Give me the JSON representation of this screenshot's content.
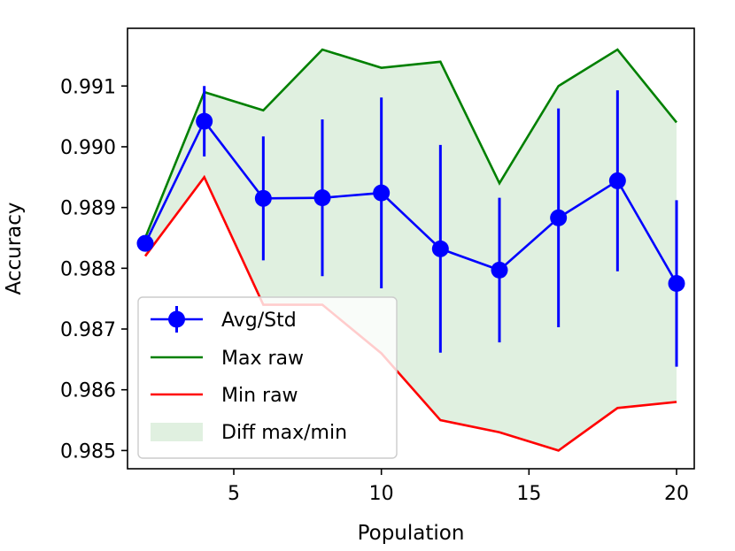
{
  "chart_data": {
    "type": "line",
    "title": "",
    "xlabel": "Population",
    "ylabel": "Accuracy",
    "xlim": [
      1.4,
      20.6
    ],
    "ylim": [
      0.9847,
      0.99195
    ],
    "xticks": [
      5,
      10,
      15,
      20
    ],
    "xtick_labels": [
      "5",
      "10",
      "15",
      "20"
    ],
    "yticks": [
      0.985,
      0.986,
      0.987,
      0.988,
      0.989,
      0.99,
      0.991
    ],
    "ytick_labels": [
      "0.985",
      "0.986",
      "0.987",
      "0.988",
      "0.989",
      "0.990",
      "0.991"
    ],
    "grid": false,
    "legend_position": "lower-left",
    "x": [
      2,
      4,
      6,
      8,
      10,
      12,
      14,
      16,
      18,
      20
    ],
    "series": [
      {
        "name": "Avg/Std",
        "kind": "errorbar",
        "color": "#0000ff",
        "values": [
          0.98841,
          0.99042,
          0.98915,
          0.98916,
          0.98924,
          0.98832,
          0.98797,
          0.98883,
          0.98944,
          0.98775
        ],
        "errors": [
          0.0,
          0.00058,
          0.00102,
          0.00129,
          0.00157,
          0.00171,
          0.00119,
          0.0018,
          0.00149,
          0.00137
        ]
      },
      {
        "name": "Max raw",
        "kind": "line",
        "color": "#008000",
        "values": [
          0.9885,
          0.9909,
          0.9906,
          0.9916,
          0.9913,
          0.9914,
          0.9894,
          0.991,
          0.9916,
          0.9904
        ]
      },
      {
        "name": "Min raw",
        "kind": "line",
        "color": "#ff0000",
        "values": [
          0.9882,
          0.9895,
          0.9874,
          0.9874,
          0.9866,
          0.9855,
          0.9853,
          0.985,
          0.9857,
          0.9858
        ]
      },
      {
        "name": "Diff max/min",
        "kind": "fill_between",
        "color": "#008000",
        "opacity": 0.12
      }
    ],
    "legend": [
      "Avg/Std",
      "Max raw",
      "Min raw",
      "Diff max/min"
    ]
  }
}
